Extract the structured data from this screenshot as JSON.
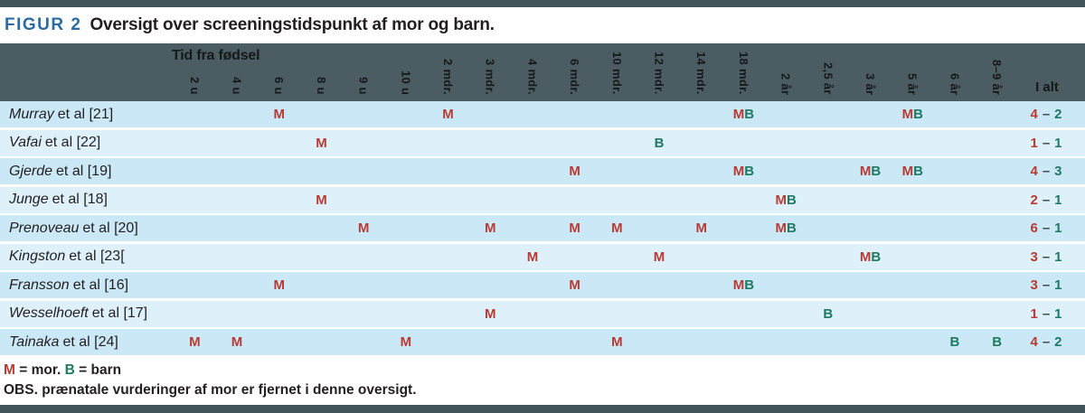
{
  "figure": {
    "label": "FIGUR 2",
    "title": "Oversigt over screeningstidspunkt af mor og barn."
  },
  "table": {
    "group_header": "Tid fra fødsel",
    "total_header": "I alt",
    "totals_separator": "–",
    "columns": [
      "2 u",
      "4 u",
      "6 u",
      "8 u",
      "9 u",
      "10 u",
      "2 mdr.",
      "3 mdr.",
      "4 mdr.",
      "6 mdr.",
      "10 mdr.",
      "12 mdr.",
      "14 mdr.",
      "18 mdr.",
      "2 år",
      "2,5 år",
      "3 år",
      "5 år",
      "6 år",
      "8–9 år"
    ],
    "rows": [
      {
        "study": "Murray",
        "suffix": "et al [21]",
        "cells": [
          "",
          "",
          "M",
          "",
          "",
          "",
          "M",
          "",
          "",
          "",
          "",
          "",
          "",
          "MB",
          "",
          "",
          "",
          "MB",
          "",
          ""
        ],
        "total": {
          "m": "4",
          "b": "2"
        }
      },
      {
        "study": "Vafai",
        "suffix": "et al [22]",
        "cells": [
          "",
          "",
          "",
          "M",
          "",
          "",
          "",
          "",
          "",
          "",
          "",
          "B",
          "",
          "",
          "",
          "",
          "",
          "",
          "",
          ""
        ],
        "total": {
          "m": "1",
          "b": "1"
        }
      },
      {
        "study": "Gjerde",
        "suffix": "et al [19]",
        "cells": [
          "",
          "",
          "",
          "",
          "",
          "",
          "",
          "",
          "",
          "M",
          "",
          "",
          "",
          "MB",
          "",
          "",
          "MB",
          "MB",
          "",
          ""
        ],
        "total": {
          "m": "4",
          "b": "3"
        }
      },
      {
        "study": "Junge",
        "suffix": "et al [18]",
        "cells": [
          "",
          "",
          "",
          "M",
          "",
          "",
          "",
          "",
          "",
          "",
          "",
          "",
          "",
          "",
          "MB",
          "",
          "",
          "",
          "",
          ""
        ],
        "total": {
          "m": "2",
          "b": "1"
        }
      },
      {
        "study": "Prenoveau",
        "suffix": "et al [20]",
        "cells": [
          "",
          "",
          "",
          "",
          "M",
          "",
          "",
          "M",
          "",
          "M",
          "M",
          "",
          "M",
          "",
          "MB",
          "",
          "",
          "",
          "",
          ""
        ],
        "total": {
          "m": "6",
          "b": "1"
        }
      },
      {
        "study": "Kingston",
        "suffix": "et al [23[",
        "cells": [
          "",
          "",
          "",
          "",
          "",
          "",
          "",
          "",
          "M",
          "",
          "",
          "M",
          "",
          "",
          "",
          "",
          "MB",
          "",
          "",
          ""
        ],
        "total": {
          "m": "3",
          "b": "1"
        }
      },
      {
        "study": "Fransson",
        "suffix": "et al [16]",
        "cells": [
          "",
          "",
          "M",
          "",
          "",
          "",
          "",
          "",
          "",
          "M",
          "",
          "",
          "",
          "MB",
          "",
          "",
          "",
          "",
          "",
          ""
        ],
        "total": {
          "m": "3",
          "b": "1"
        }
      },
      {
        "study": "Wesselhoeft",
        "suffix": "et al [17]",
        "cells": [
          "",
          "",
          "",
          "",
          "",
          "",
          "",
          "M",
          "",
          "",
          "",
          "",
          "",
          "",
          "",
          "B",
          "",
          "",
          "",
          ""
        ],
        "total": {
          "m": "1",
          "b": "1"
        }
      },
      {
        "study": "Tainaka",
        "suffix": "et al [24]",
        "cells": [
          "M",
          "M",
          "",
          "",
          "",
          "M",
          "",
          "",
          "",
          "",
          "M",
          "",
          "",
          "",
          "",
          "",
          "",
          "",
          "B",
          "B"
        ],
        "total": {
          "m": "4",
          "b": "2"
        }
      }
    ]
  },
  "legend": {
    "items": [
      {
        "symbol": "M",
        "definition": " = mor. "
      },
      {
        "symbol": "B",
        "definition": " = barn"
      }
    ],
    "note": "OBS. prænatale vurderinger af mor er fjernet i denne oversigt."
  },
  "colors": {
    "accent_blue": "#2b6ca3",
    "mor_red": "#b93a33",
    "barn_green": "#1e7a63",
    "header_band": "#4b5d63",
    "bar": "#42545a",
    "row_dark": "#cbe8f6",
    "row_light": "#def1fb",
    "text": "#231f20"
  }
}
